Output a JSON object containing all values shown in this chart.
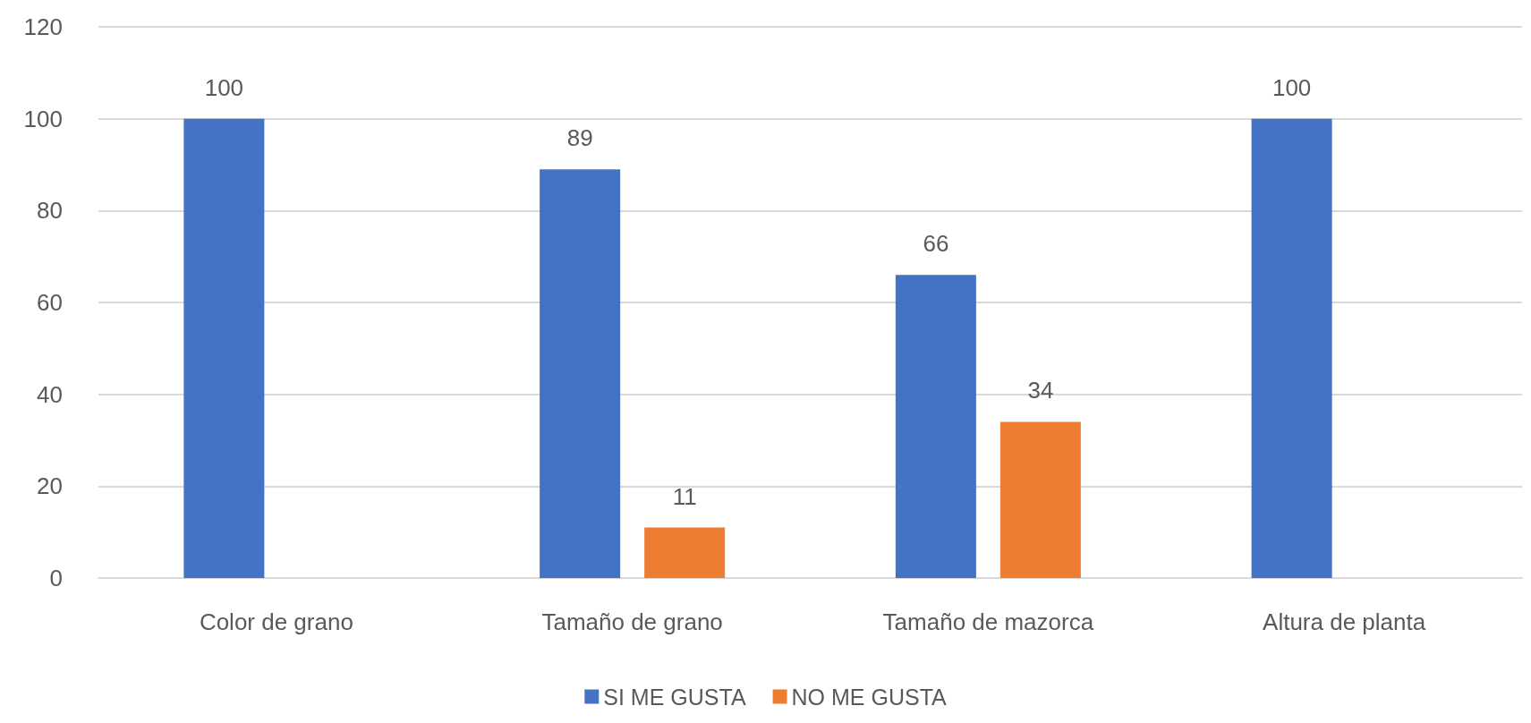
{
  "chart_data": {
    "type": "bar",
    "categories": [
      "Color de grano",
      "Tamaño de grano",
      "Tamaño de mazorca",
      "Altura de planta"
    ],
    "series": [
      {
        "name": "SI ME GUSTA",
        "color": "#4472c4",
        "values": [
          100,
          89,
          66,
          100
        ]
      },
      {
        "name": "NO ME GUSTA",
        "color": "#ed7d31",
        "values": [
          null,
          11,
          34,
          null
        ]
      }
    ],
    "ylim": [
      0,
      120
    ],
    "yticks": [
      0,
      20,
      40,
      60,
      80,
      100,
      120
    ],
    "grid": "y",
    "legend": "bottom",
    "data_labels": true
  }
}
